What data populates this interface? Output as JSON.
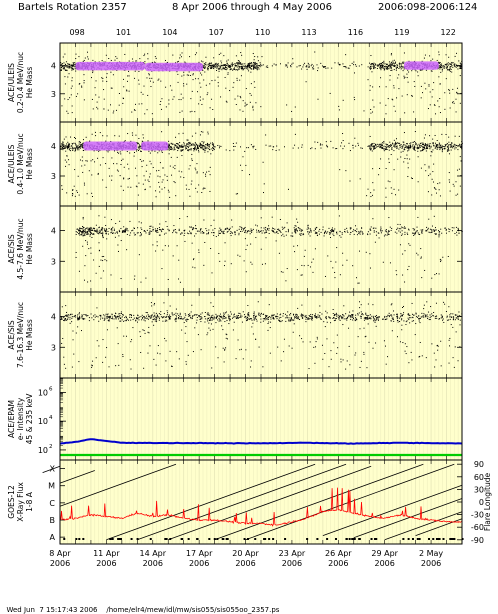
{
  "header": {
    "title": "Bartels Rotation 2357",
    "range": "8 Apr 2006 through 4 May 2006",
    "doy": "2006:098-2006:124"
  },
  "footer": {
    "timestamp": "Wed Jun  7 15:17:43 2006",
    "path": "/home/elr4/mew/idl/mw/sis055/sis055oo_2357.ps"
  },
  "top_ticks": [
    "098",
    "101",
    "104",
    "107",
    "110",
    "113",
    "116",
    "119",
    "122"
  ],
  "x_ticks": [
    {
      "d": "8 Apr",
      "y": "2006"
    },
    {
      "d": "11 Apr",
      "y": "2006"
    },
    {
      "d": "14 Apr",
      "y": "2006"
    },
    {
      "d": "17 Apr",
      "y": "2006"
    },
    {
      "d": "20 Apr",
      "y": "2006"
    },
    {
      "d": "23 Apr",
      "y": "2006"
    },
    {
      "d": "26 Apr",
      "y": "2006"
    },
    {
      "d": "29 Apr",
      "y": "2006"
    },
    {
      "d": "2 May",
      "y": "2006"
    }
  ],
  "colors": {
    "background": "#ffffcc",
    "grid": "#e6e6b8",
    "points": "#000000",
    "density": "#cc66ff",
    "electron_trace": "#0000cc",
    "electron_baseline": "#00cc00",
    "xray_trace": "#ff0000"
  },
  "chart_data": [
    {
      "type": "scatter",
      "ylabel": [
        "ACE/ULEIS",
        "0.2-0.4 MeV/nuc",
        "He Mass"
      ],
      "yticks": [
        3,
        4
      ],
      "ylim": [
        2,
        4.8
      ],
      "x_range": [
        "2006-04-08",
        "2006-05-04"
      ],
      "density_segments": [
        [
          "2006-04-09T00",
          "2006-04-13T12",
          3.98
        ],
        [
          "2006-04-13T12",
          "2006-04-17T06",
          3.95
        ],
        [
          "2006-04-30T06",
          "2006-05-02T12",
          4.0
        ]
      ],
      "activity": [
        [
          "2006-04-08",
          "2006-04-21",
          1.0
        ],
        [
          "2006-04-21",
          "2006-04-28",
          0.15
        ],
        [
          "2006-04-28",
          "2006-05-04",
          0.9
        ]
      ]
    },
    {
      "type": "scatter",
      "ylabel": [
        "ACE/ULEIS",
        "0.4-1.0 MeV/nuc",
        "He Mass"
      ],
      "yticks": [
        3,
        4
      ],
      "ylim": [
        2,
        4.8
      ],
      "x_range": [
        "2006-04-08",
        "2006-05-04"
      ],
      "density_segments": [
        [
          "2006-04-09T12",
          "2006-04-13T00",
          4.0
        ],
        [
          "2006-04-13T06",
          "2006-04-15T00",
          4.0
        ]
      ],
      "activity": [
        [
          "2006-04-08",
          "2006-04-18",
          1.0
        ],
        [
          "2006-04-18",
          "2006-04-28",
          0.1
        ],
        [
          "2006-04-28",
          "2006-05-04",
          0.8
        ]
      ]
    },
    {
      "type": "scatter",
      "ylabel": [
        "ACE/SIS",
        "4.5-7.6 MeV/nuc",
        "He Mass"
      ],
      "yticks": [
        3,
        4
      ],
      "ylim": [
        2,
        4.8
      ],
      "x_range": [
        "2006-04-08",
        "2006-05-04"
      ],
      "activity": [
        [
          "2006-04-09",
          "2006-04-11",
          1.0
        ],
        [
          "2006-04-11",
          "2006-05-04",
          0.35
        ]
      ]
    },
    {
      "type": "scatter",
      "ylabel": [
        "ACE/SIS",
        "7.6-16.3 MeV/nuc",
        "He Mass"
      ],
      "yticks": [
        3,
        4
      ],
      "ylim": [
        2,
        4.8
      ],
      "x_range": [
        "2006-04-08",
        "2006-05-04"
      ],
      "activity": [
        [
          "2006-04-08",
          "2006-05-04",
          0.5
        ]
      ]
    },
    {
      "type": "line",
      "ylabel": [
        "ACE/EPAM",
        "e- Intensity",
        "45 & 235 keV"
      ],
      "yticks": [
        "10",
        "10",
        "10"
      ],
      "ytick_exponents": [
        "2",
        "4",
        "6"
      ],
      "ylim_log10": [
        1.3,
        7.0
      ],
      "x_range": [
        "2006-04-08",
        "2006-05-04"
      ],
      "series": [
        {
          "x": [
            "2006-04-08",
            "2006-04-09",
            "2006-04-10",
            "2006-04-11",
            "2006-04-12",
            "2006-04-15",
            "2006-04-18",
            "2006-04-21",
            "2006-04-24",
            "2006-04-27",
            "2006-04-30",
            "2006-05-02",
            "2006-05-04"
          ],
          "y": [
            2.45,
            2.55,
            2.75,
            2.62,
            2.5,
            2.48,
            2.47,
            2.46,
            2.5,
            2.44,
            2.5,
            2.47,
            2.45
          ]
        },
        {
          "x": [
            "2006-04-08",
            "2006-05-04"
          ],
          "y": [
            1.65,
            1.65
          ]
        }
      ]
    },
    {
      "type": "line",
      "ylabel": [
        "GOES-12",
        "X-Ray Flux",
        "1-8 A"
      ],
      "left_ticks": [
        "X",
        "M",
        "C",
        "B",
        "A"
      ],
      "left_levels_log10": [
        -4,
        -5,
        -6,
        -7,
        -8
      ],
      "ylim_log10": [
        -8.4,
        -3.5
      ],
      "right_label": "Flare Longitude",
      "right_ticks": [
        90,
        60,
        30,
        0,
        -30,
        -60,
        -90
      ],
      "right_ylim": [
        -100,
        100
      ],
      "x_range": [
        "2006-04-08",
        "2006-05-04"
      ],
      "xray": {
        "x": [
          "2006-04-08",
          "2006-04-09",
          "2006-04-10",
          "2006-04-11",
          "2006-04-12",
          "2006-04-13",
          "2006-04-14",
          "2006-04-15",
          "2006-04-16",
          "2006-04-17",
          "2006-04-18",
          "2006-04-19",
          "2006-04-20",
          "2006-04-21",
          "2006-04-22",
          "2006-04-23",
          "2006-04-24",
          "2006-04-25",
          "2006-04-26",
          "2006-04-27",
          "2006-04-28",
          "2006-04-29",
          "2006-04-30",
          "2006-05-01",
          "2006-05-02",
          "2006-05-03",
          "2006-05-04"
        ],
        "y": [
          -7.0,
          -6.9,
          -6.7,
          -6.8,
          -6.9,
          -6.6,
          -6.8,
          -6.7,
          -6.9,
          -7.0,
          -7.0,
          -7.1,
          -7.2,
          -7.2,
          -7.3,
          -7.1,
          -6.9,
          -6.5,
          -6.4,
          -6.6,
          -6.8,
          -6.9,
          -6.7,
          -6.9,
          -7.0,
          -7.1,
          -7.1
        ]
      },
      "longitude_tracks": [
        {
          "start": "2006-04-08",
          "lon_start": 85,
          "lon_end": 70
        },
        {
          "start": "2006-04-08",
          "lon_start": 45,
          "lon_end": 75
        },
        {
          "start": "2006-04-08",
          "lon_start": -10,
          "lon_end": 90
        },
        {
          "start": "2006-04-11",
          "lon_start": -90,
          "lon_end": 90
        },
        {
          "start": "2006-04-13",
          "lon_start": -90,
          "lon_end": 90
        },
        {
          "start": "2006-04-15",
          "lon_start": -90,
          "lon_end": 85
        },
        {
          "start": "2006-04-18",
          "lon_start": -90,
          "lon_end": 90
        },
        {
          "start": "2006-04-20",
          "lon_start": -90,
          "lon_end": 90
        },
        {
          "start": "2006-04-25",
          "lon_start": -80,
          "lon_end": 60
        },
        {
          "start": "2006-04-27",
          "lon_start": -85,
          "lon_end": 60
        },
        {
          "start": "2006-04-29",
          "lon_start": -90,
          "lon_end": 40
        },
        {
          "start": "2006-05-01",
          "lon_start": -80,
          "lon_end": -10
        }
      ]
    }
  ]
}
